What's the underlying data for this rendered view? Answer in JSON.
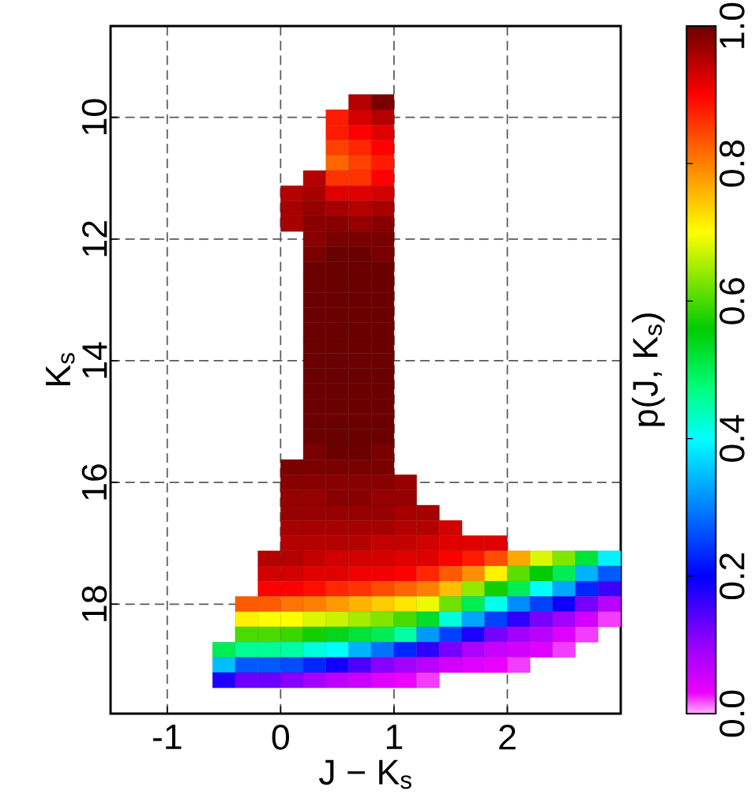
{
  "chart_data": {
    "type": "scatter",
    "xlabel": "J − K$_{s}$",
    "ylabel": "K$_{s}$",
    "clabel": "p(J, K$_{s}$)",
    "xlim": [
      -1.5,
      3
    ],
    "ylim": [
      19.8,
      8.5
    ],
    "xticks": [
      -1,
      0,
      1,
      2
    ],
    "yticks": [
      10,
      12,
      14,
      16,
      18
    ],
    "clim": [
      0,
      1
    ],
    "cticks": [
      {
        "value": 0,
        "label": "0.0"
      },
      0.2,
      0.4,
      0.6,
      0.8,
      {
        "value": 1,
        "label": "1.0"
      }
    ],
    "grid": true,
    "marker": "square",
    "x": [
      0.7,
      0.9,
      0.5,
      0.7,
      0.9,
      0.5,
      0.7,
      0.9,
      0.5,
      0.7,
      0.9,
      0.5,
      0.7,
      0.9,
      0.3,
      0.5,
      0.7,
      0.9,
      0.1,
      0.3,
      0.5,
      0.7,
      0.9,
      0.1,
      0.3,
      0.5,
      0.7,
      0.9,
      0.1,
      0.3,
      0.5,
      0.7,
      0.9,
      0.3,
      0.5,
      0.7,
      0.9,
      0.3,
      0.5,
      0.7,
      0.9,
      0.3,
      0.5,
      0.7,
      0.9,
      0.3,
      0.5,
      0.7,
      0.9,
      0.3,
      0.5,
      0.7,
      0.9,
      0.3,
      0.5,
      0.7,
      0.9,
      0.3,
      0.5,
      0.7,
      0.9,
      0.3,
      0.5,
      0.7,
      0.9,
      0.3,
      0.5,
      0.7,
      0.9,
      0.3,
      0.5,
      0.7,
      0.9,
      0.3,
      0.5,
      0.7,
      0.9,
      0.3,
      0.5,
      0.7,
      0.9,
      0.3,
      0.5,
      0.7,
      0.9,
      0.3,
      0.5,
      0.7,
      0.9,
      0.3,
      0.5,
      0.7,
      0.9,
      0.1,
      0.3,
      0.5,
      0.7,
      0.9,
      0.1,
      0.3,
      0.5,
      0.7,
      0.9,
      1.1,
      0.1,
      0.3,
      0.5,
      0.7,
      0.9,
      1.1,
      0.1,
      0.3,
      0.5,
      0.7,
      0.9,
      1.1,
      1.3,
      0.1,
      0.3,
      0.5,
      0.7,
      0.9,
      1.1,
      1.3,
      1.5,
      0.1,
      0.3,
      0.5,
      0.7,
      0.9,
      1.1,
      1.3,
      1.5,
      1.7,
      1.9,
      -0.1,
      0.1,
      0.3,
      0.5,
      0.7,
      0.9,
      1.1,
      1.3,
      1.5,
      1.7,
      1.9,
      2.1,
      2.3,
      2.5,
      2.7,
      2.9,
      -0.1,
      0.1,
      0.3,
      0.5,
      0.7,
      0.9,
      1.1,
      1.3,
      1.5,
      1.7,
      1.9,
      2.1,
      2.3,
      2.5,
      2.7,
      2.9,
      -0.1,
      0.1,
      0.3,
      0.5,
      0.7,
      0.9,
      1.1,
      1.3,
      1.5,
      1.7,
      1.9,
      2.1,
      2.3,
      2.5,
      2.7,
      2.9,
      -0.3,
      -0.1,
      0.1,
      0.3,
      0.5,
      0.7,
      0.9,
      1.1,
      1.3,
      1.5,
      1.7,
      1.9,
      2.1,
      2.3,
      2.5,
      2.7,
      2.9,
      -0.3,
      -0.1,
      0.1,
      0.3,
      0.5,
      0.7,
      0.9,
      1.1,
      1.3,
      1.5,
      1.7,
      1.9,
      2.1,
      2.3,
      2.5,
      2.7,
      2.9,
      -0.3,
      -0.1,
      0.1,
      0.3,
      0.5,
      0.7,
      0.9,
      1.1,
      1.3,
      1.5,
      1.7,
      1.9,
      2.1,
      2.3,
      2.5,
      2.7,
      -0.5,
      -0.3,
      -0.1,
      0.1,
      0.3,
      0.5,
      0.7,
      0.9,
      1.1,
      1.3,
      1.5,
      1.7,
      1.9,
      2.1,
      2.3,
      2.5,
      -0.5,
      -0.3,
      -0.1,
      0.1,
      0.3,
      0.5,
      0.7,
      0.9,
      1.1,
      1.3,
      1.5,
      1.7,
      1.9,
      2.1,
      -0.5,
      -0.3,
      -0.1,
      0.1,
      0.3,
      0.5,
      0.7,
      0.9,
      1.1,
      1.3
    ],
    "values": [
      9.75,
      9.75,
      10,
      10,
      10,
      10.25,
      10.25,
      10.25,
      10.5,
      10.5,
      10.5,
      10.75,
      10.75,
      10.75,
      11,
      11,
      11,
      11,
      11.25,
      11.25,
      11.25,
      11.25,
      11.25,
      11.5,
      11.5,
      11.5,
      11.5,
      11.5,
      11.75,
      11.75,
      11.75,
      11.75,
      11.75,
      12,
      12,
      12,
      12,
      12.25,
      12.25,
      12.25,
      12.25,
      12.5,
      12.5,
      12.5,
      12.5,
      12.75,
      12.75,
      12.75,
      12.75,
      13,
      13,
      13,
      13,
      13.25,
      13.25,
      13.25,
      13.25,
      13.5,
      13.5,
      13.5,
      13.5,
      13.75,
      13.75,
      13.75,
      13.75,
      14,
      14,
      14,
      14,
      14.25,
      14.25,
      14.25,
      14.25,
      14.5,
      14.5,
      14.5,
      14.5,
      14.75,
      14.75,
      14.75,
      14.75,
      15,
      15,
      15,
      15,
      15.25,
      15.25,
      15.25,
      15.25,
      15.5,
      15.5,
      15.5,
      15.5,
      15.75,
      15.75,
      15.75,
      15.75,
      15.75,
      16,
      16,
      16,
      16,
      16,
      16,
      16.25,
      16.25,
      16.25,
      16.25,
      16.25,
      16.25,
      16.5,
      16.5,
      16.5,
      16.5,
      16.5,
      16.5,
      16.5,
      16.75,
      16.75,
      16.75,
      16.75,
      16.75,
      16.75,
      16.75,
      16.75,
      17,
      17,
      17,
      17,
      17,
      17,
      17,
      17,
      17,
      17,
      17.25,
      17.25,
      17.25,
      17.25,
      17.25,
      17.25,
      17.25,
      17.25,
      17.25,
      17.25,
      17.25,
      17.25,
      17.25,
      17.25,
      17.25,
      17.25,
      17.5,
      17.5,
      17.5,
      17.5,
      17.5,
      17.5,
      17.5,
      17.5,
      17.5,
      17.5,
      17.5,
      17.5,
      17.5,
      17.5,
      17.5,
      17.5,
      17.75,
      17.75,
      17.75,
      17.75,
      17.75,
      17.75,
      17.75,
      17.75,
      17.75,
      17.75,
      17.75,
      17.75,
      17.75,
      17.75,
      17.75,
      17.75,
      18,
      18,
      18,
      18,
      18,
      18,
      18,
      18,
      18,
      18,
      18,
      18,
      18,
      18,
      18,
      18,
      18,
      18.25,
      18.25,
      18.25,
      18.25,
      18.25,
      18.25,
      18.25,
      18.25,
      18.25,
      18.25,
      18.25,
      18.25,
      18.25,
      18.25,
      18.25,
      18.25,
      18.25,
      18.5,
      18.5,
      18.5,
      18.5,
      18.5,
      18.5,
      18.5,
      18.5,
      18.5,
      18.5,
      18.5,
      18.5,
      18.5,
      18.5,
      18.5,
      18.5,
      18.75,
      18.75,
      18.75,
      18.75,
      18.75,
      18.75,
      18.75,
      18.75,
      18.75,
      18.75,
      18.75,
      18.75,
      18.75,
      18.75,
      18.75,
      18.75,
      19,
      19,
      19,
      19,
      19,
      19,
      19,
      19,
      19,
      19,
      19,
      19,
      19,
      19,
      19.25,
      19.25,
      19.25,
      19.25,
      19.25,
      19.25,
      19.25,
      19.25,
      19.25,
      19.25
    ],
    "cvalues": [
      0.95,
      0.99,
      0.88,
      0.93,
      0.95,
      0.88,
      0.9,
      0.92,
      0.85,
      0.87,
      0.9,
      0.82,
      0.85,
      0.88,
      0.95,
      0.86,
      0.86,
      0.9,
      0.95,
      0.96,
      0.92,
      0.92,
      0.93,
      0.96,
      0.97,
      0.96,
      0.95,
      0.96,
      0.96,
      0.98,
      0.98,
      0.97,
      0.98,
      0.98,
      0.99,
      0.99,
      0.99,
      0.99,
      1,
      1,
      0.99,
      1,
      1,
      1,
      1,
      1,
      1,
      1,
      1,
      1,
      1,
      1,
      1,
      1,
      1,
      1,
      1,
      1,
      1,
      1,
      1,
      1,
      1,
      1,
      1,
      1,
      1,
      1,
      1,
      1,
      1,
      1,
      1,
      1,
      1,
      1,
      1,
      1,
      1,
      1,
      1,
      1,
      1,
      1,
      1,
      1,
      1,
      1,
      1,
      0.99,
      1,
      1,
      0.99,
      0.99,
      0.99,
      0.99,
      0.99,
      0.99,
      0.98,
      0.98,
      0.98,
      0.98,
      0.98,
      0.97,
      0.97,
      0.97,
      0.98,
      0.98,
      0.97,
      0.97,
      0.97,
      0.97,
      0.97,
      0.97,
      0.97,
      0.96,
      0.96,
      0.96,
      0.96,
      0.96,
      0.96,
      0.96,
      0.95,
      0.95,
      0.93,
      0.95,
      0.95,
      0.95,
      0.95,
      0.94,
      0.94,
      0.93,
      0.92,
      0.92,
      0.92,
      0.95,
      0.95,
      0.94,
      0.93,
      0.93,
      0.93,
      0.92,
      0.92,
      0.9,
      0.88,
      0.84,
      0.77,
      0.68,
      0.63,
      0.52,
      0.39,
      0.93,
      0.93,
      0.92,
      0.92,
      0.91,
      0.91,
      0.9,
      0.87,
      0.83,
      0.79,
      0.71,
      0.61,
      0.56,
      0.5,
      0.34,
      0.27,
      0.9,
      0.9,
      0.89,
      0.87,
      0.86,
      0.84,
      0.82,
      0.8,
      0.75,
      0.64,
      0.57,
      0.5,
      0.4,
      0.33,
      0.23,
      0.16,
      0.83,
      0.83,
      0.81,
      0.8,
      0.78,
      0.76,
      0.74,
      0.72,
      0.69,
      0.62,
      0.5,
      0.41,
      0.31,
      0.25,
      0.19,
      0.12,
      0.07,
      0.71,
      0.7,
      0.7,
      0.68,
      0.67,
      0.65,
      0.63,
      0.6,
      0.53,
      0.42,
      0.33,
      0.25,
      0.17,
      0.12,
      0.09,
      0.05,
      0.02,
      0.6,
      0.6,
      0.59,
      0.57,
      0.54,
      0.52,
      0.5,
      0.45,
      0.32,
      0.25,
      0.18,
      0.12,
      0.09,
      0.07,
      0.04,
      0.02,
      0.5,
      0.46,
      0.46,
      0.45,
      0.42,
      0.4,
      0.34,
      0.29,
      0.23,
      0.17,
      0.12,
      0.08,
      0.06,
      0.05,
      0.04,
      0.02,
      0.35,
      0.27,
      0.27,
      0.26,
      0.23,
      0.19,
      0.15,
      0.11,
      0.09,
      0.07,
      0.05,
      0.04,
      0.03,
      0.02,
      0.18,
      0.13,
      0.13,
      0.11,
      0.09,
      0.07,
      0.06,
      0.04,
      0.03,
      0.02
    ]
  }
}
